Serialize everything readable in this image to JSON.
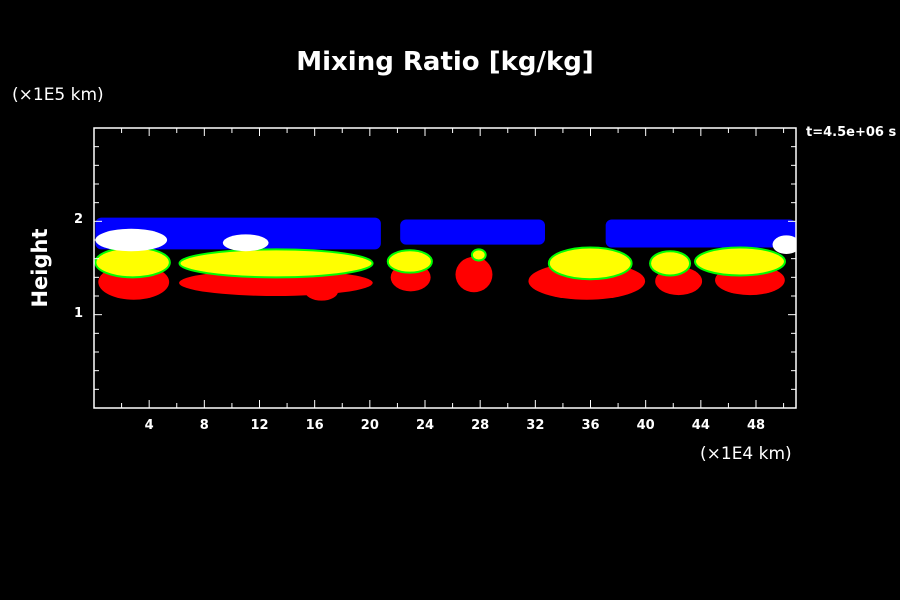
{
  "chart_data": {
    "type": "heatmap",
    "title": "Mixing Ratio [kg/kg]",
    "xlabel": "",
    "ylabel": "Height",
    "x_unit_label": "(×1E4 km)",
    "y_unit_label": "(×1E5 km)",
    "time_label": "t=4.5e+06 s",
    "xlim": [
      0,
      50.9
    ],
    "ylim": [
      0,
      3
    ],
    "x_ticks": [
      4,
      8,
      12,
      16,
      20,
      24,
      28,
      32,
      36,
      40,
      44,
      48
    ],
    "y_ticks": [
      1,
      2
    ],
    "colors": {
      "blue": "#0000ff",
      "white": "#ffffff",
      "green": "#00ff00",
      "yellow": "#ffff00",
      "red": "#ff0000",
      "background": "#000000"
    },
    "regions": [
      {
        "level": "blue",
        "shape": "rect",
        "x0": 0.1,
        "x1": 20.8,
        "y0": 1.7,
        "y1": 2.04
      },
      {
        "level": "blue",
        "shape": "rect",
        "x0": 22.2,
        "x1": 32.7,
        "y0": 1.75,
        "y1": 2.02
      },
      {
        "level": "blue",
        "shape": "rect",
        "x0": 37.1,
        "x1": 50.9,
        "y0": 1.72,
        "y1": 2.02
      },
      {
        "level": "red",
        "shape": "ellipse",
        "cx": 2.88,
        "cy": 1.35,
        "rx": 2.57,
        "ry": 0.19
      },
      {
        "level": "red",
        "shape": "ellipse",
        "cx": 13.19,
        "cy": 1.34,
        "rx": 7.02,
        "ry": 0.14
      },
      {
        "level": "red",
        "shape": "ellipse",
        "cx": 16.5,
        "cy": 1.25,
        "rx": 1.2,
        "ry": 0.1
      },
      {
        "level": "red",
        "shape": "ellipse",
        "cx": 22.96,
        "cy": 1.4,
        "rx": 1.45,
        "ry": 0.15
      },
      {
        "level": "red",
        "shape": "ellipse",
        "cx": 27.55,
        "cy": 1.43,
        "rx": 1.34,
        "ry": 0.19
      },
      {
        "level": "red",
        "shape": "ellipse",
        "cx": 35.73,
        "cy": 1.36,
        "rx": 4.23,
        "ry": 0.2
      },
      {
        "level": "red",
        "shape": "ellipse",
        "cx": 42.39,
        "cy": 1.36,
        "rx": 1.7,
        "ry": 0.15
      },
      {
        "level": "red",
        "shape": "ellipse",
        "cx": 47.56,
        "cy": 1.37,
        "rx": 2.53,
        "ry": 0.16
      },
      {
        "level": "yellow",
        "shape": "ellipse",
        "cx": 2.8,
        "cy": 1.56,
        "rx": 2.7,
        "ry": 0.16
      },
      {
        "level": "yellow",
        "shape": "ellipse",
        "cx": 13.2,
        "cy": 1.55,
        "rx": 7.0,
        "ry": 0.15
      },
      {
        "level": "yellow",
        "shape": "ellipse",
        "cx": 22.9,
        "cy": 1.57,
        "rx": 1.6,
        "ry": 0.12
      },
      {
        "level": "yellow",
        "shape": "ellipse",
        "cx": 27.9,
        "cy": 1.64,
        "rx": 0.5,
        "ry": 0.06
      },
      {
        "level": "yellow",
        "shape": "ellipse",
        "cx": 35.98,
        "cy": 1.55,
        "rx": 3.0,
        "ry": 0.17
      },
      {
        "level": "yellow",
        "shape": "ellipse",
        "cx": 41.77,
        "cy": 1.55,
        "rx": 1.45,
        "ry": 0.13
      },
      {
        "level": "yellow",
        "shape": "ellipse",
        "cx": 46.84,
        "cy": 1.57,
        "rx": 3.26,
        "ry": 0.15
      },
      {
        "level": "white",
        "shape": "ellipse",
        "cx": 2.7,
        "cy": 1.8,
        "rx": 2.6,
        "ry": 0.12
      },
      {
        "level": "white",
        "shape": "ellipse",
        "cx": 11.0,
        "cy": 1.77,
        "rx": 1.66,
        "ry": 0.09
      },
      {
        "level": "white",
        "shape": "ellipse",
        "cx": 50.2,
        "cy": 1.75,
        "rx": 1.0,
        "ry": 0.1
      }
    ]
  }
}
